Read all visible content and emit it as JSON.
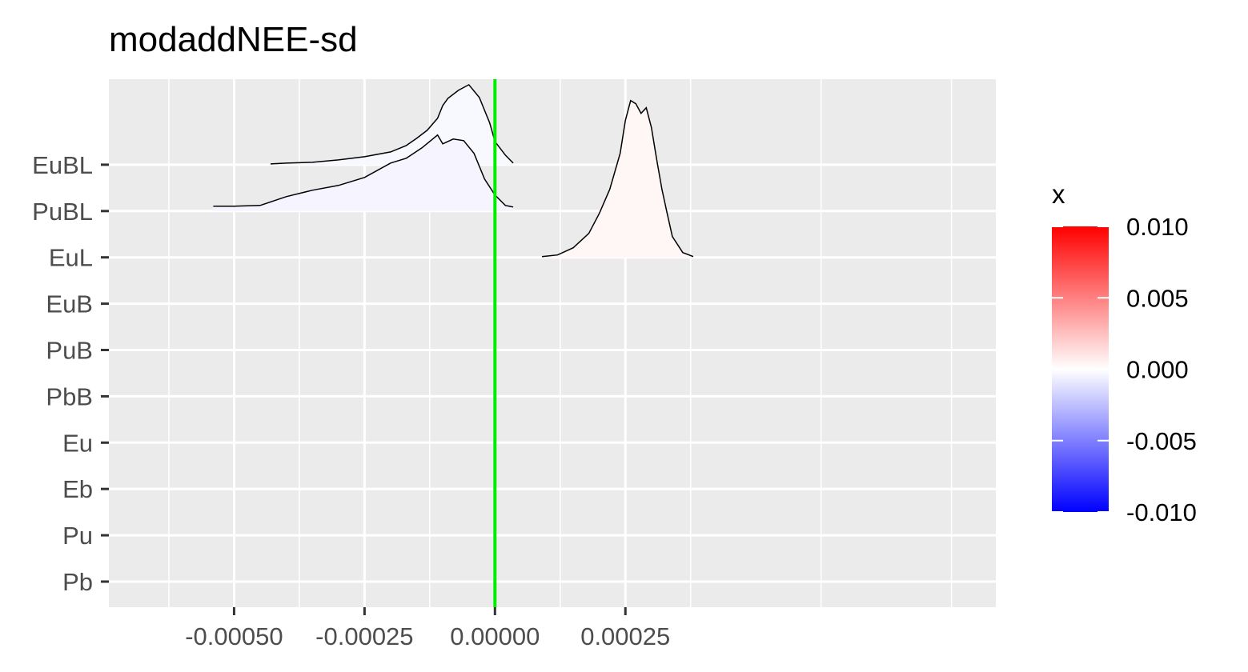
{
  "chart_data": {
    "type": "ridgeline-density",
    "title": "modaddNEE-sd",
    "xlabel": "",
    "ylabel": "",
    "xlim": [
      -0.00074,
      0.00096
    ],
    "x_ticks": [
      -0.0005,
      -0.00025,
      0,
      0.00025
    ],
    "x_tick_labels": [
      "-0.00050",
      "-0.00025",
      "0.00000",
      "0.00025"
    ],
    "categories": [
      "Pb",
      "Pu",
      "Eb",
      "Eu",
      "PbB",
      "PuB",
      "EuB",
      "EuL",
      "PuBL",
      "EuBL"
    ],
    "reference_line": {
      "x": 0,
      "color": "#00ee00"
    },
    "grid": true,
    "legend": {
      "title": "x",
      "position": "right",
      "ticks": [
        0.01,
        0.005,
        0,
        -0.005,
        -0.01
      ],
      "tick_labels": [
        "0.010",
        "0.005",
        "0.000",
        "-0.005",
        "-0.010"
      ],
      "colors": {
        "high": "#ff0000",
        "mid": "#ffffff",
        "low": "#0000ff"
      }
    },
    "series": [
      {
        "category": "EuBL",
        "points": [
          [
            -0.00043,
            0.01
          ],
          [
            -0.0004,
            0.02
          ],
          [
            -0.00035,
            0.03
          ],
          [
            -0.0003,
            0.06
          ],
          [
            -0.00025,
            0.1
          ],
          [
            -0.0002,
            0.16
          ],
          [
            -0.00017,
            0.24
          ],
          [
            -0.00015,
            0.33
          ],
          [
            -0.00013,
            0.43
          ],
          [
            -0.00011,
            0.58
          ],
          [
            -0.0001,
            0.74
          ],
          [
            -9e-05,
            0.83
          ],
          [
            -7e-05,
            0.93
          ],
          [
            -5e-05,
            1.0
          ],
          [
            -3e-05,
            0.84
          ],
          [
            -1e-05,
            0.52
          ],
          [
            0.0,
            0.29
          ],
          [
            2e-05,
            0.12
          ],
          [
            3.5e-05,
            0.02
          ]
        ]
      },
      {
        "category": "PuBL",
        "points": [
          [
            -0.00054,
            0.06
          ],
          [
            -0.0005,
            0.06
          ],
          [
            -0.00045,
            0.07
          ],
          [
            -0.0004,
            0.18
          ],
          [
            -0.00035,
            0.26
          ],
          [
            -0.0003,
            0.32
          ],
          [
            -0.00025,
            0.42
          ],
          [
            -0.0002,
            0.6
          ],
          [
            -0.00017,
            0.66
          ],
          [
            -0.00014,
            0.79
          ],
          [
            -0.00011,
            0.95
          ],
          [
            -0.0001,
            0.84
          ],
          [
            -8e-05,
            0.9
          ],
          [
            -6e-05,
            0.88
          ],
          [
            -4e-05,
            0.72
          ],
          [
            -2e-05,
            0.4
          ],
          [
            0.0,
            0.2
          ],
          [
            2e-05,
            0.07
          ],
          [
            3.5e-05,
            0.05
          ]
        ]
      },
      {
        "category": "EuL",
        "points": [
          [
            9e-05,
            0.01
          ],
          [
            0.00012,
            0.03
          ],
          [
            0.00015,
            0.12
          ],
          [
            0.00018,
            0.3
          ],
          [
            0.0002,
            0.55
          ],
          [
            0.00022,
            0.85
          ],
          [
            0.00024,
            1.3
          ],
          [
            0.00025,
            1.71
          ],
          [
            0.00026,
            1.96
          ],
          [
            0.00027,
            1.92
          ],
          [
            0.00028,
            1.8
          ],
          [
            0.00029,
            1.87
          ],
          [
            0.0003,
            1.62
          ],
          [
            0.00031,
            1.22
          ],
          [
            0.00032,
            0.85
          ],
          [
            0.00033,
            0.55
          ],
          [
            0.00034,
            0.26
          ],
          [
            0.00036,
            0.06
          ],
          [
            0.00038,
            0.01
          ]
        ]
      }
    ]
  }
}
